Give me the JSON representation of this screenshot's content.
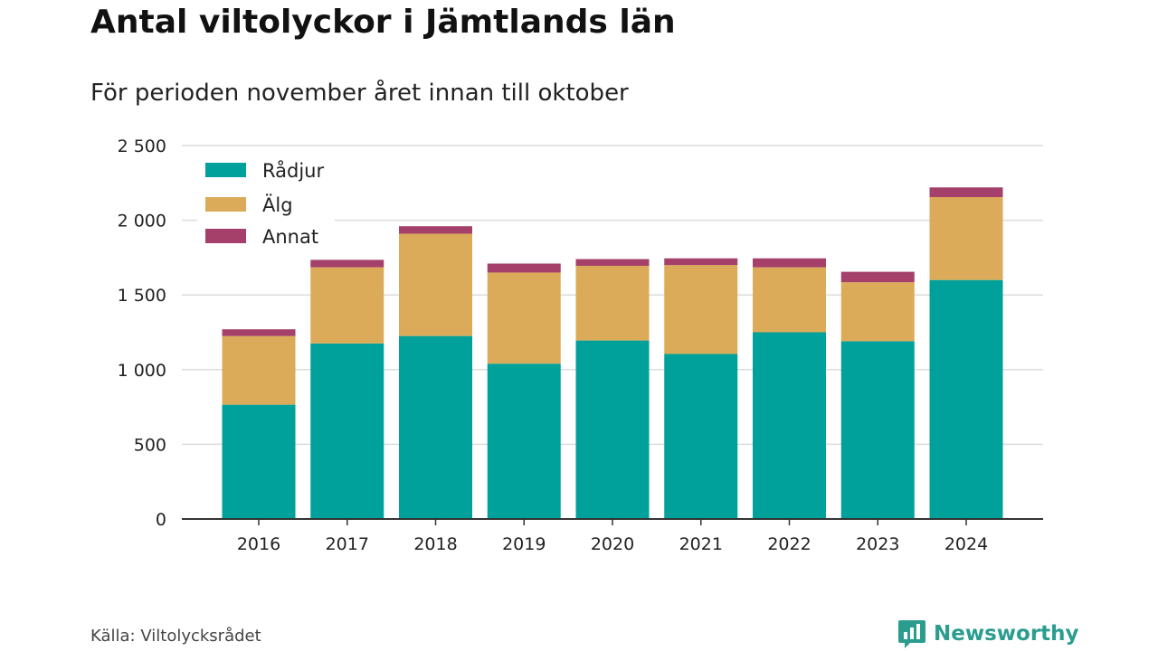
{
  "title": "Antal viltolyckor i Jämtlands län",
  "subtitle": "För perioden november året innan till oktober",
  "source": "Källa: Viltolycksrådet",
  "brand": {
    "name": "Newsworthy",
    "icon": "bar-chart-icon",
    "color": "#2a9d8f"
  },
  "chart_data": {
    "type": "bar",
    "stacked": true,
    "categories": [
      "2016",
      "2017",
      "2018",
      "2019",
      "2020",
      "2021",
      "2022",
      "2023",
      "2024"
    ],
    "series": [
      {
        "name": "Rådjur",
        "color": "#00a19a",
        "values": [
          765,
          1175,
          1225,
          1040,
          1195,
          1105,
          1250,
          1190,
          1600
        ]
      },
      {
        "name": "Älg",
        "color": "#dbab5a",
        "values": [
          460,
          510,
          685,
          610,
          500,
          595,
          435,
          395,
          555
        ]
      },
      {
        "name": "Annat",
        "color": "#a4406a",
        "values": [
          45,
          50,
          50,
          60,
          45,
          45,
          60,
          70,
          65
        ]
      }
    ],
    "ylim": [
      0,
      2500
    ],
    "yticks": [
      0,
      500,
      1000,
      1500,
      2000,
      2500
    ],
    "ytick_labels": [
      "0",
      "500",
      "1 000",
      "1 500",
      "2 000",
      "2 500"
    ],
    "grid": true,
    "legend_position": "top-left"
  }
}
